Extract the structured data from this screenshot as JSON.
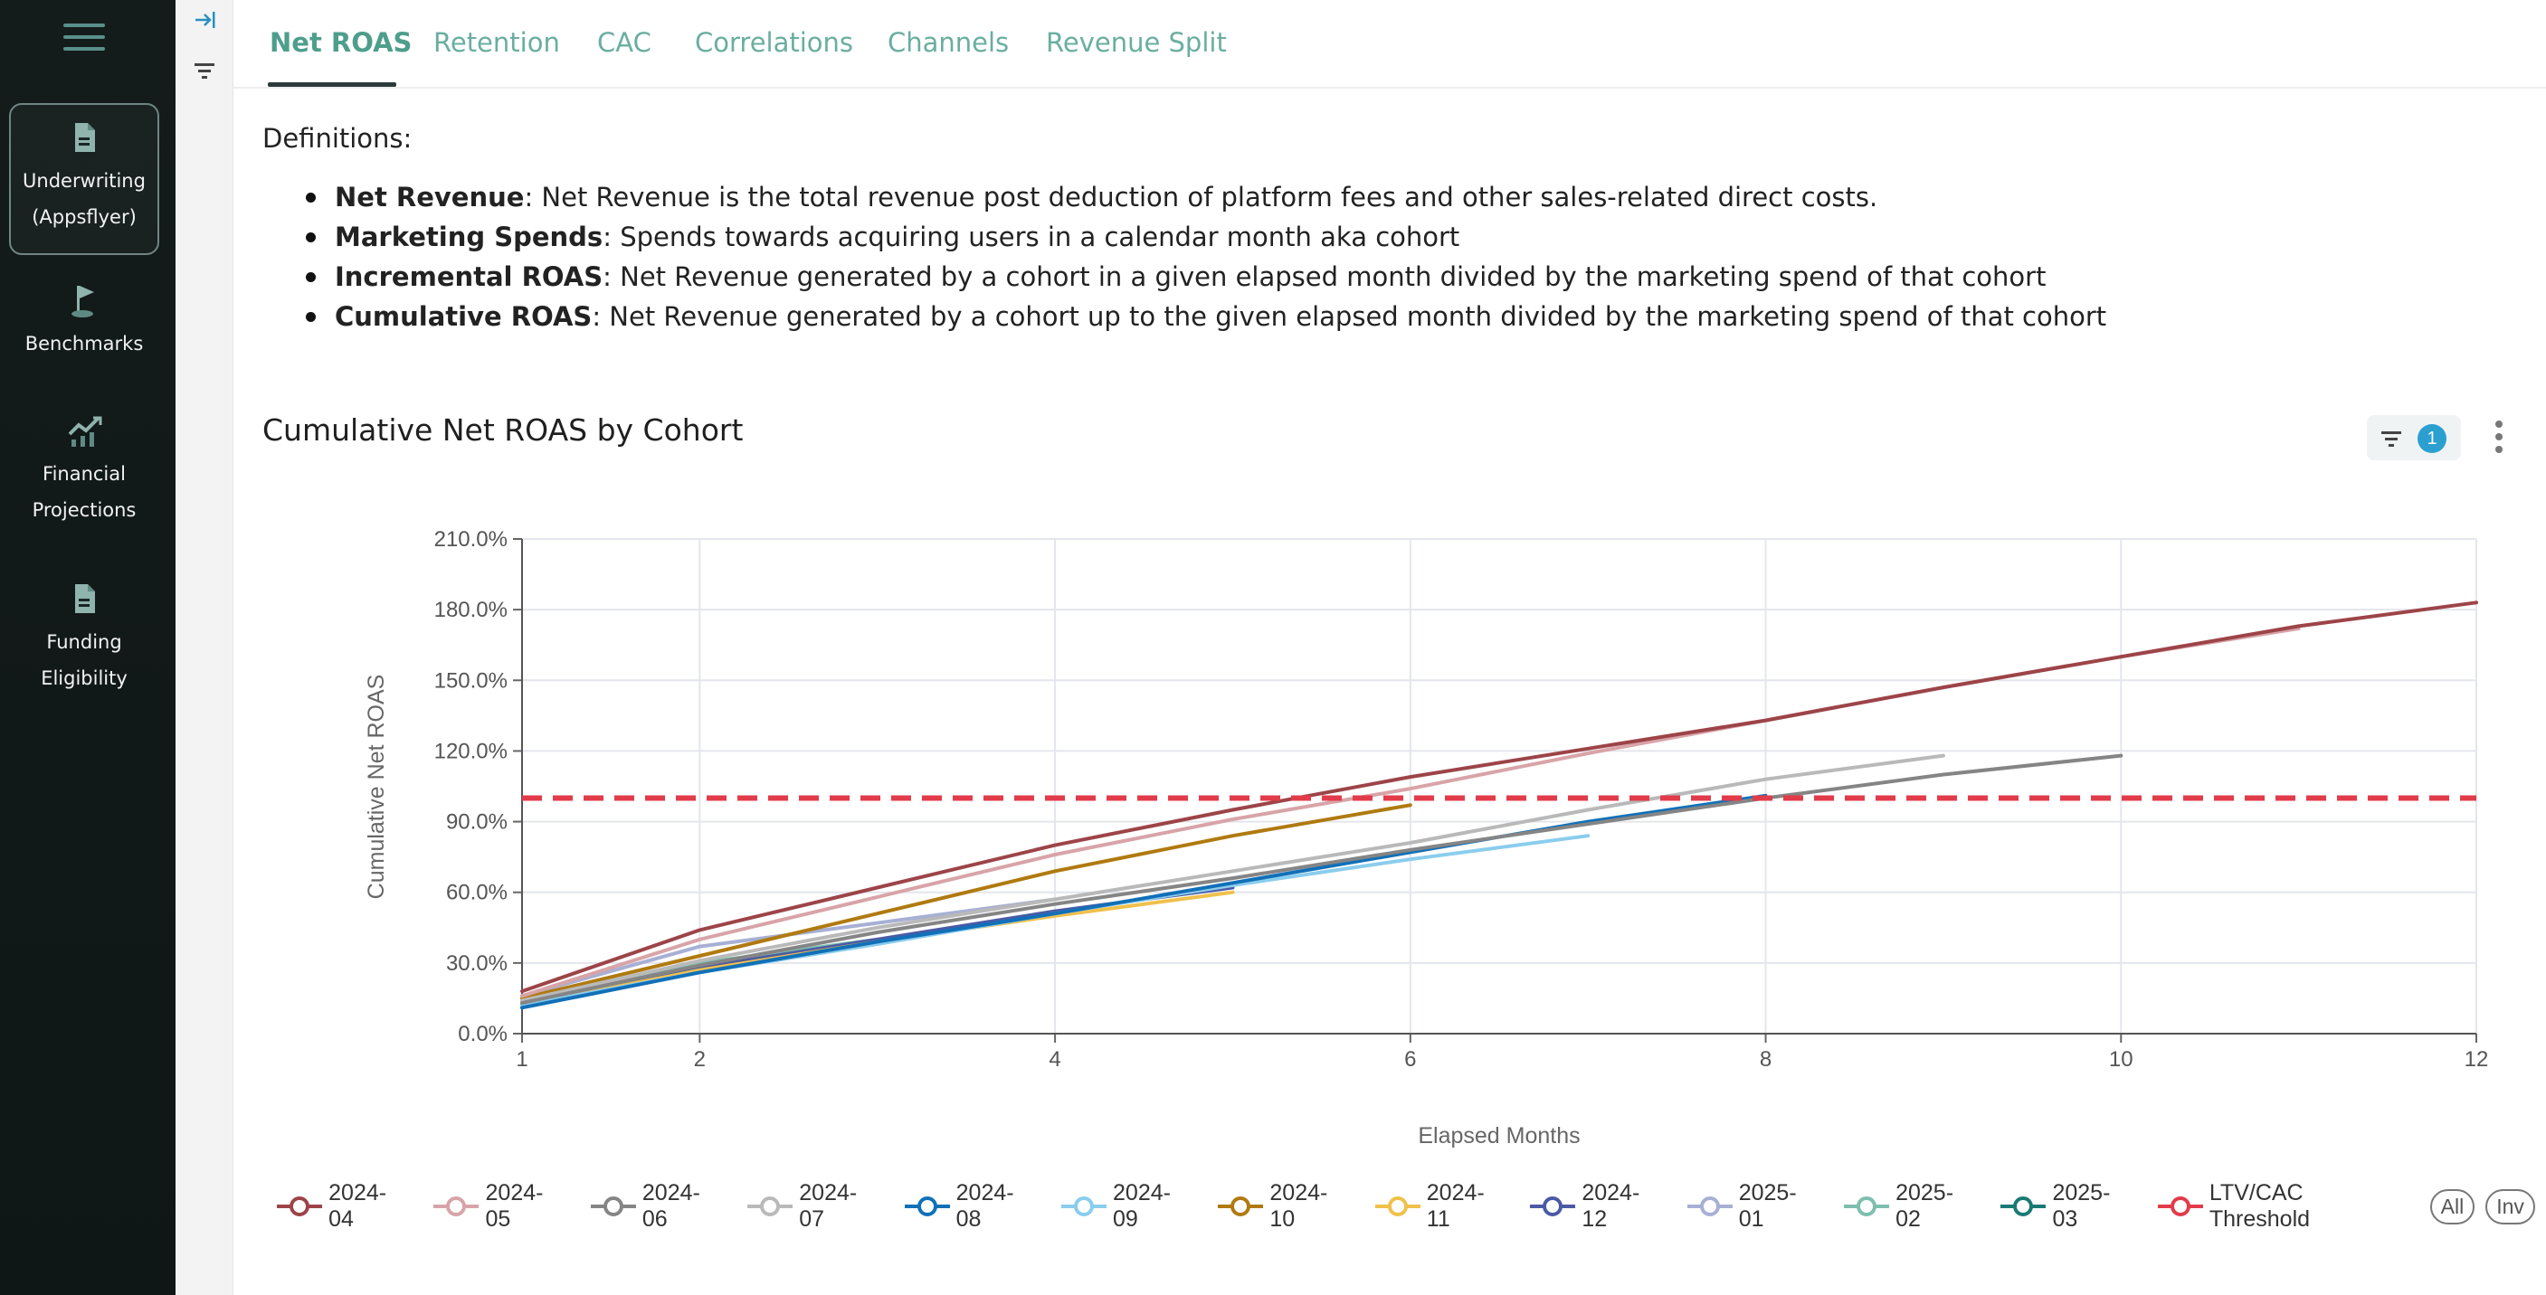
{
  "nav": {
    "items": [
      {
        "line1": "Underwriting",
        "line2": "(Appsflyer)"
      },
      {
        "line1": "Benchmarks",
        "line2": ""
      },
      {
        "line1": "Financial",
        "line2": "Projections"
      },
      {
        "line1": "Funding",
        "line2": "Eligibility"
      }
    ]
  },
  "tabs": [
    {
      "label": "Net ROAS"
    },
    {
      "label": "Retention"
    },
    {
      "label": "CAC"
    },
    {
      "label": "Correlations"
    },
    {
      "label": "Channels"
    },
    {
      "label": "Revenue Split"
    }
  ],
  "definitions": {
    "heading": "Definitions:",
    "items": [
      {
        "term": "Net Revenue",
        "text": ": Net Revenue is the total revenue post deduction of platform fees and other sales-related direct costs."
      },
      {
        "term": "Marketing Spends",
        "text": ": Spends towards acquiring users in a calendar month aka cohort"
      },
      {
        "term": "Incremental ROAS",
        "text": ": Net Revenue generated by a cohort in a given elapsed month divided by the marketing spend of that cohort"
      },
      {
        "term": "Cumulative ROAS",
        "text": ": Net Revenue generated by a cohort up to the given elapsed month divided by the marketing spend of that cohort"
      }
    ]
  },
  "chart_header": {
    "title": "Cumulative Net ROAS by Cohort",
    "filter_count": "1"
  },
  "legend_buttons": {
    "all": "All",
    "inv": "Inv"
  },
  "chart_data": {
    "type": "line",
    "title": "Cumulative Net ROAS by Cohort",
    "xlabel": "Elapsed Months",
    "ylabel": "Cumulative Net ROAS",
    "xlim": [
      1,
      12
    ],
    "ylim": [
      0,
      210
    ],
    "x_ticks": [
      1,
      2,
      4,
      6,
      8,
      10,
      12
    ],
    "y_ticks": [
      "0.0%",
      "30.0%",
      "60.0%",
      "90.0%",
      "120.0%",
      "150.0%",
      "180.0%",
      "210.0%"
    ],
    "grid": true,
    "legend_position": "bottom",
    "series": [
      {
        "name": "2025-03",
        "color": "#1a7a74",
        "x": [
          1,
          2
        ],
        "y": [
          12,
          27
        ]
      },
      {
        "name": "2025-02",
        "color": "#7dbfae",
        "x": [
          1,
          2,
          3
        ],
        "y": [
          13,
          30,
          40
        ]
      },
      {
        "name": "2025-01",
        "color": "#a7b0d4",
        "x": [
          1,
          2,
          3,
          4
        ],
        "y": [
          16,
          37,
          47,
          57
        ]
      },
      {
        "name": "2024-12",
        "color": "#4b5aa5",
        "x": [
          1,
          2,
          3,
          4,
          5
        ],
        "y": [
          12,
          28,
          40,
          52,
          62
        ]
      },
      {
        "name": "2024-11",
        "color": "#f0c04a",
        "x": [
          1,
          2,
          3,
          4,
          5
        ],
        "y": [
          12,
          27,
          39,
          50,
          60
        ]
      },
      {
        "name": "2024-10",
        "color": "#b07a10",
        "x": [
          1,
          2,
          3,
          4,
          5,
          6
        ],
        "y": [
          15,
          33,
          51,
          69,
          84,
          97
        ]
      },
      {
        "name": "2024-09",
        "color": "#8acdee",
        "x": [
          1,
          2,
          3,
          4,
          5,
          6,
          7
        ],
        "y": [
          12,
          26,
          38,
          51,
          63,
          74,
          84
        ]
      },
      {
        "name": "2024-08",
        "color": "#1170b8",
        "x": [
          1,
          2,
          3,
          4,
          5,
          6,
          7,
          8
        ],
        "y": [
          11,
          26,
          39,
          51,
          64,
          77,
          90,
          101
        ]
      },
      {
        "name": "2024-07",
        "color": "#b9b9b9",
        "x": [
          1,
          2,
          3,
          4,
          5,
          6,
          7,
          8,
          9
        ],
        "y": [
          14,
          31,
          45,
          57,
          69,
          81,
          95,
          108,
          118
        ]
      },
      {
        "name": "2024-06",
        "color": "#858585",
        "x": [
          1,
          2,
          3,
          4,
          5,
          6,
          7,
          8,
          9,
          10
        ],
        "y": [
          13,
          29,
          43,
          55,
          66,
          78,
          89,
          100,
          110,
          118
        ]
      },
      {
        "name": "2024-05",
        "color": "#d8a4a8",
        "x": [
          1,
          2,
          3,
          4,
          5,
          6,
          7,
          8,
          9,
          10,
          11
        ],
        "y": [
          16,
          40,
          58,
          76,
          91,
          104,
          119,
          133,
          147,
          160,
          172
        ]
      },
      {
        "name": "2024-04",
        "color": "#9d4448",
        "x": [
          1,
          2,
          3,
          4,
          5,
          6,
          7,
          8,
          9,
          10,
          11,
          12
        ],
        "y": [
          18,
          44,
          62,
          80,
          95,
          109,
          121,
          133,
          147,
          160,
          173,
          183
        ]
      }
    ],
    "threshold": {
      "name": "LTV/CAC Threshold",
      "value": 100,
      "color": "#e23b4a"
    }
  }
}
